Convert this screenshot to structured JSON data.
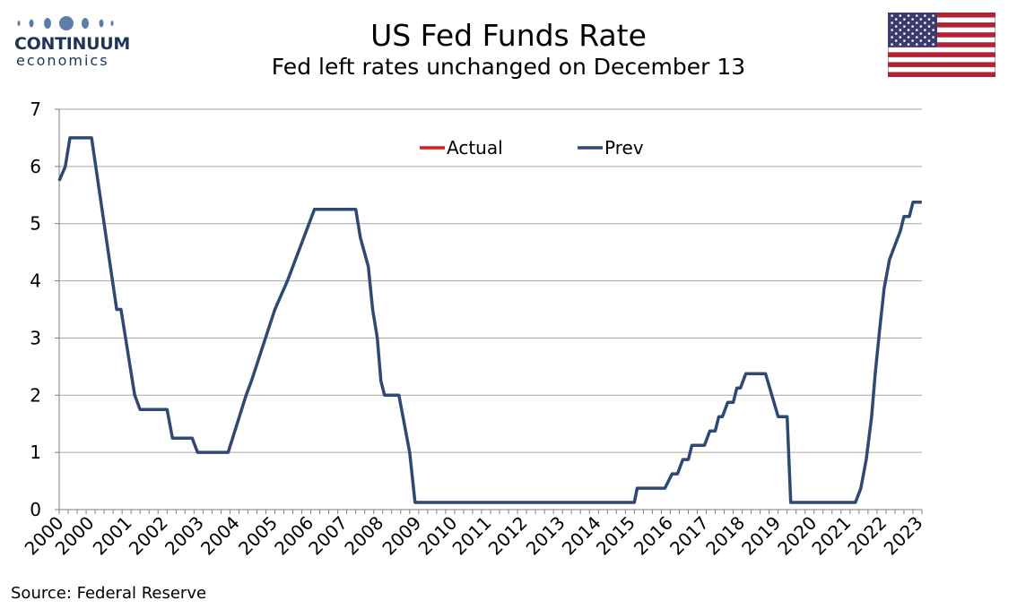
{
  "header": {
    "title": "US Fed Funds Rate",
    "subtitle": "Fed left rates unchanged on December 13"
  },
  "logo": {
    "name": "CONTINUUM",
    "sub": "economics",
    "color": "#1d3557"
  },
  "flag": {
    "icon": "us-flag-icon"
  },
  "footer": {
    "source": "Source: Federal Reserve"
  },
  "chart_data": {
    "type": "line",
    "ylim": [
      0,
      7
    ],
    "yticks": [
      "0",
      "1",
      "2",
      "3",
      "4",
      "5",
      "6",
      "7"
    ],
    "xlim": [
      2000.0,
      2024.0
    ],
    "xtick_labels": [
      {
        "x": 2000.0,
        "label": "2000"
      },
      {
        "x": 2000.85,
        "label": "2000"
      },
      {
        "x": 2001.9,
        "label": "2001"
      },
      {
        "x": 2002.9,
        "label": "2002"
      },
      {
        "x": 2003.9,
        "label": "2003"
      },
      {
        "x": 2004.9,
        "label": "2004"
      },
      {
        "x": 2005.95,
        "label": "2005"
      },
      {
        "x": 2006.95,
        "label": "2006"
      },
      {
        "x": 2007.9,
        "label": "2007"
      },
      {
        "x": 2008.9,
        "label": "2008"
      },
      {
        "x": 2009.95,
        "label": "2009"
      },
      {
        "x": 2010.95,
        "label": "2010"
      },
      {
        "x": 2011.9,
        "label": "2011"
      },
      {
        "x": 2012.9,
        "label": "2012"
      },
      {
        "x": 2013.95,
        "label": "2013"
      },
      {
        "x": 2014.95,
        "label": "2014"
      },
      {
        "x": 2015.9,
        "label": "2015"
      },
      {
        "x": 2016.95,
        "label": "2016"
      },
      {
        "x": 2017.95,
        "label": "2017"
      },
      {
        "x": 2018.95,
        "label": "2018"
      },
      {
        "x": 2019.95,
        "label": "2019"
      },
      {
        "x": 2020.95,
        "label": "2020"
      },
      {
        "x": 2021.9,
        "label": "2021"
      },
      {
        "x": 2022.9,
        "label": "2022"
      },
      {
        "x": 2023.9,
        "label": "2023"
      }
    ],
    "grid": "horizontal",
    "legend_position": "top-center",
    "series": [
      {
        "name": "Prev",
        "color": "#2e4a74",
        "points": [
          [
            2000.0,
            5.75
          ],
          [
            2000.17,
            6.0
          ],
          [
            2000.3,
            6.5
          ],
          [
            2000.9,
            6.5
          ],
          [
            2001.6,
            3.5
          ],
          [
            2001.72,
            3.5
          ],
          [
            2002.1,
            2.0
          ],
          [
            2002.25,
            1.75
          ],
          [
            2003.0,
            1.75
          ],
          [
            2003.15,
            1.25
          ],
          [
            2003.7,
            1.25
          ],
          [
            2003.85,
            1.0
          ],
          [
            2004.7,
            1.0
          ],
          [
            2005.2,
            2.0
          ],
          [
            2005.35,
            2.25
          ],
          [
            2006.0,
            3.5
          ],
          [
            2006.35,
            4.0
          ],
          [
            2007.1,
            5.25
          ],
          [
            2008.25,
            5.25
          ],
          [
            2008.38,
            4.75
          ],
          [
            2008.6,
            4.25
          ],
          [
            2008.72,
            3.5
          ],
          [
            2008.85,
            3.0
          ],
          [
            2008.95,
            2.25
          ],
          [
            2009.05,
            2.0
          ],
          [
            2009.45,
            2.0
          ],
          [
            2009.75,
            1.0
          ],
          [
            2009.9,
            0.125
          ],
          [
            2016.0,
            0.125
          ],
          [
            2016.08,
            0.375
          ],
          [
            2016.85,
            0.375
          ],
          [
            2017.05,
            0.625
          ],
          [
            2017.2,
            0.625
          ],
          [
            2017.35,
            0.875
          ],
          [
            2017.5,
            0.875
          ],
          [
            2017.6,
            1.125
          ],
          [
            2017.95,
            1.125
          ],
          [
            2018.1,
            1.375
          ],
          [
            2018.25,
            1.375
          ],
          [
            2018.35,
            1.625
          ],
          [
            2018.45,
            1.625
          ],
          [
            2018.6,
            1.875
          ],
          [
            2018.75,
            1.875
          ],
          [
            2018.85,
            2.125
          ],
          [
            2018.95,
            2.125
          ],
          [
            2019.1,
            2.375
          ],
          [
            2019.65,
            2.375
          ],
          [
            2020.0,
            1.625
          ],
          [
            2020.25,
            1.625
          ],
          [
            2020.35,
            0.125
          ],
          [
            2022.15,
            0.125
          ],
          [
            2022.3,
            0.375
          ],
          [
            2022.45,
            0.875
          ],
          [
            2022.6,
            1.625
          ],
          [
            2022.7,
            2.375
          ],
          [
            2022.82,
            3.125
          ],
          [
            2022.95,
            3.875
          ],
          [
            2023.1,
            4.375
          ],
          [
            2023.25,
            4.625
          ],
          [
            2023.4,
            4.875
          ],
          [
            2023.5,
            5.125
          ],
          [
            2023.65,
            5.125
          ],
          [
            2023.75,
            5.375
          ],
          [
            2023.98,
            5.375
          ]
        ]
      },
      {
        "name": "Actual",
        "color": "#e31a1c",
        "points": [
          [
            2023.98,
            5.375
          ],
          [
            2024.0,
            5.375
          ]
        ]
      }
    ]
  }
}
